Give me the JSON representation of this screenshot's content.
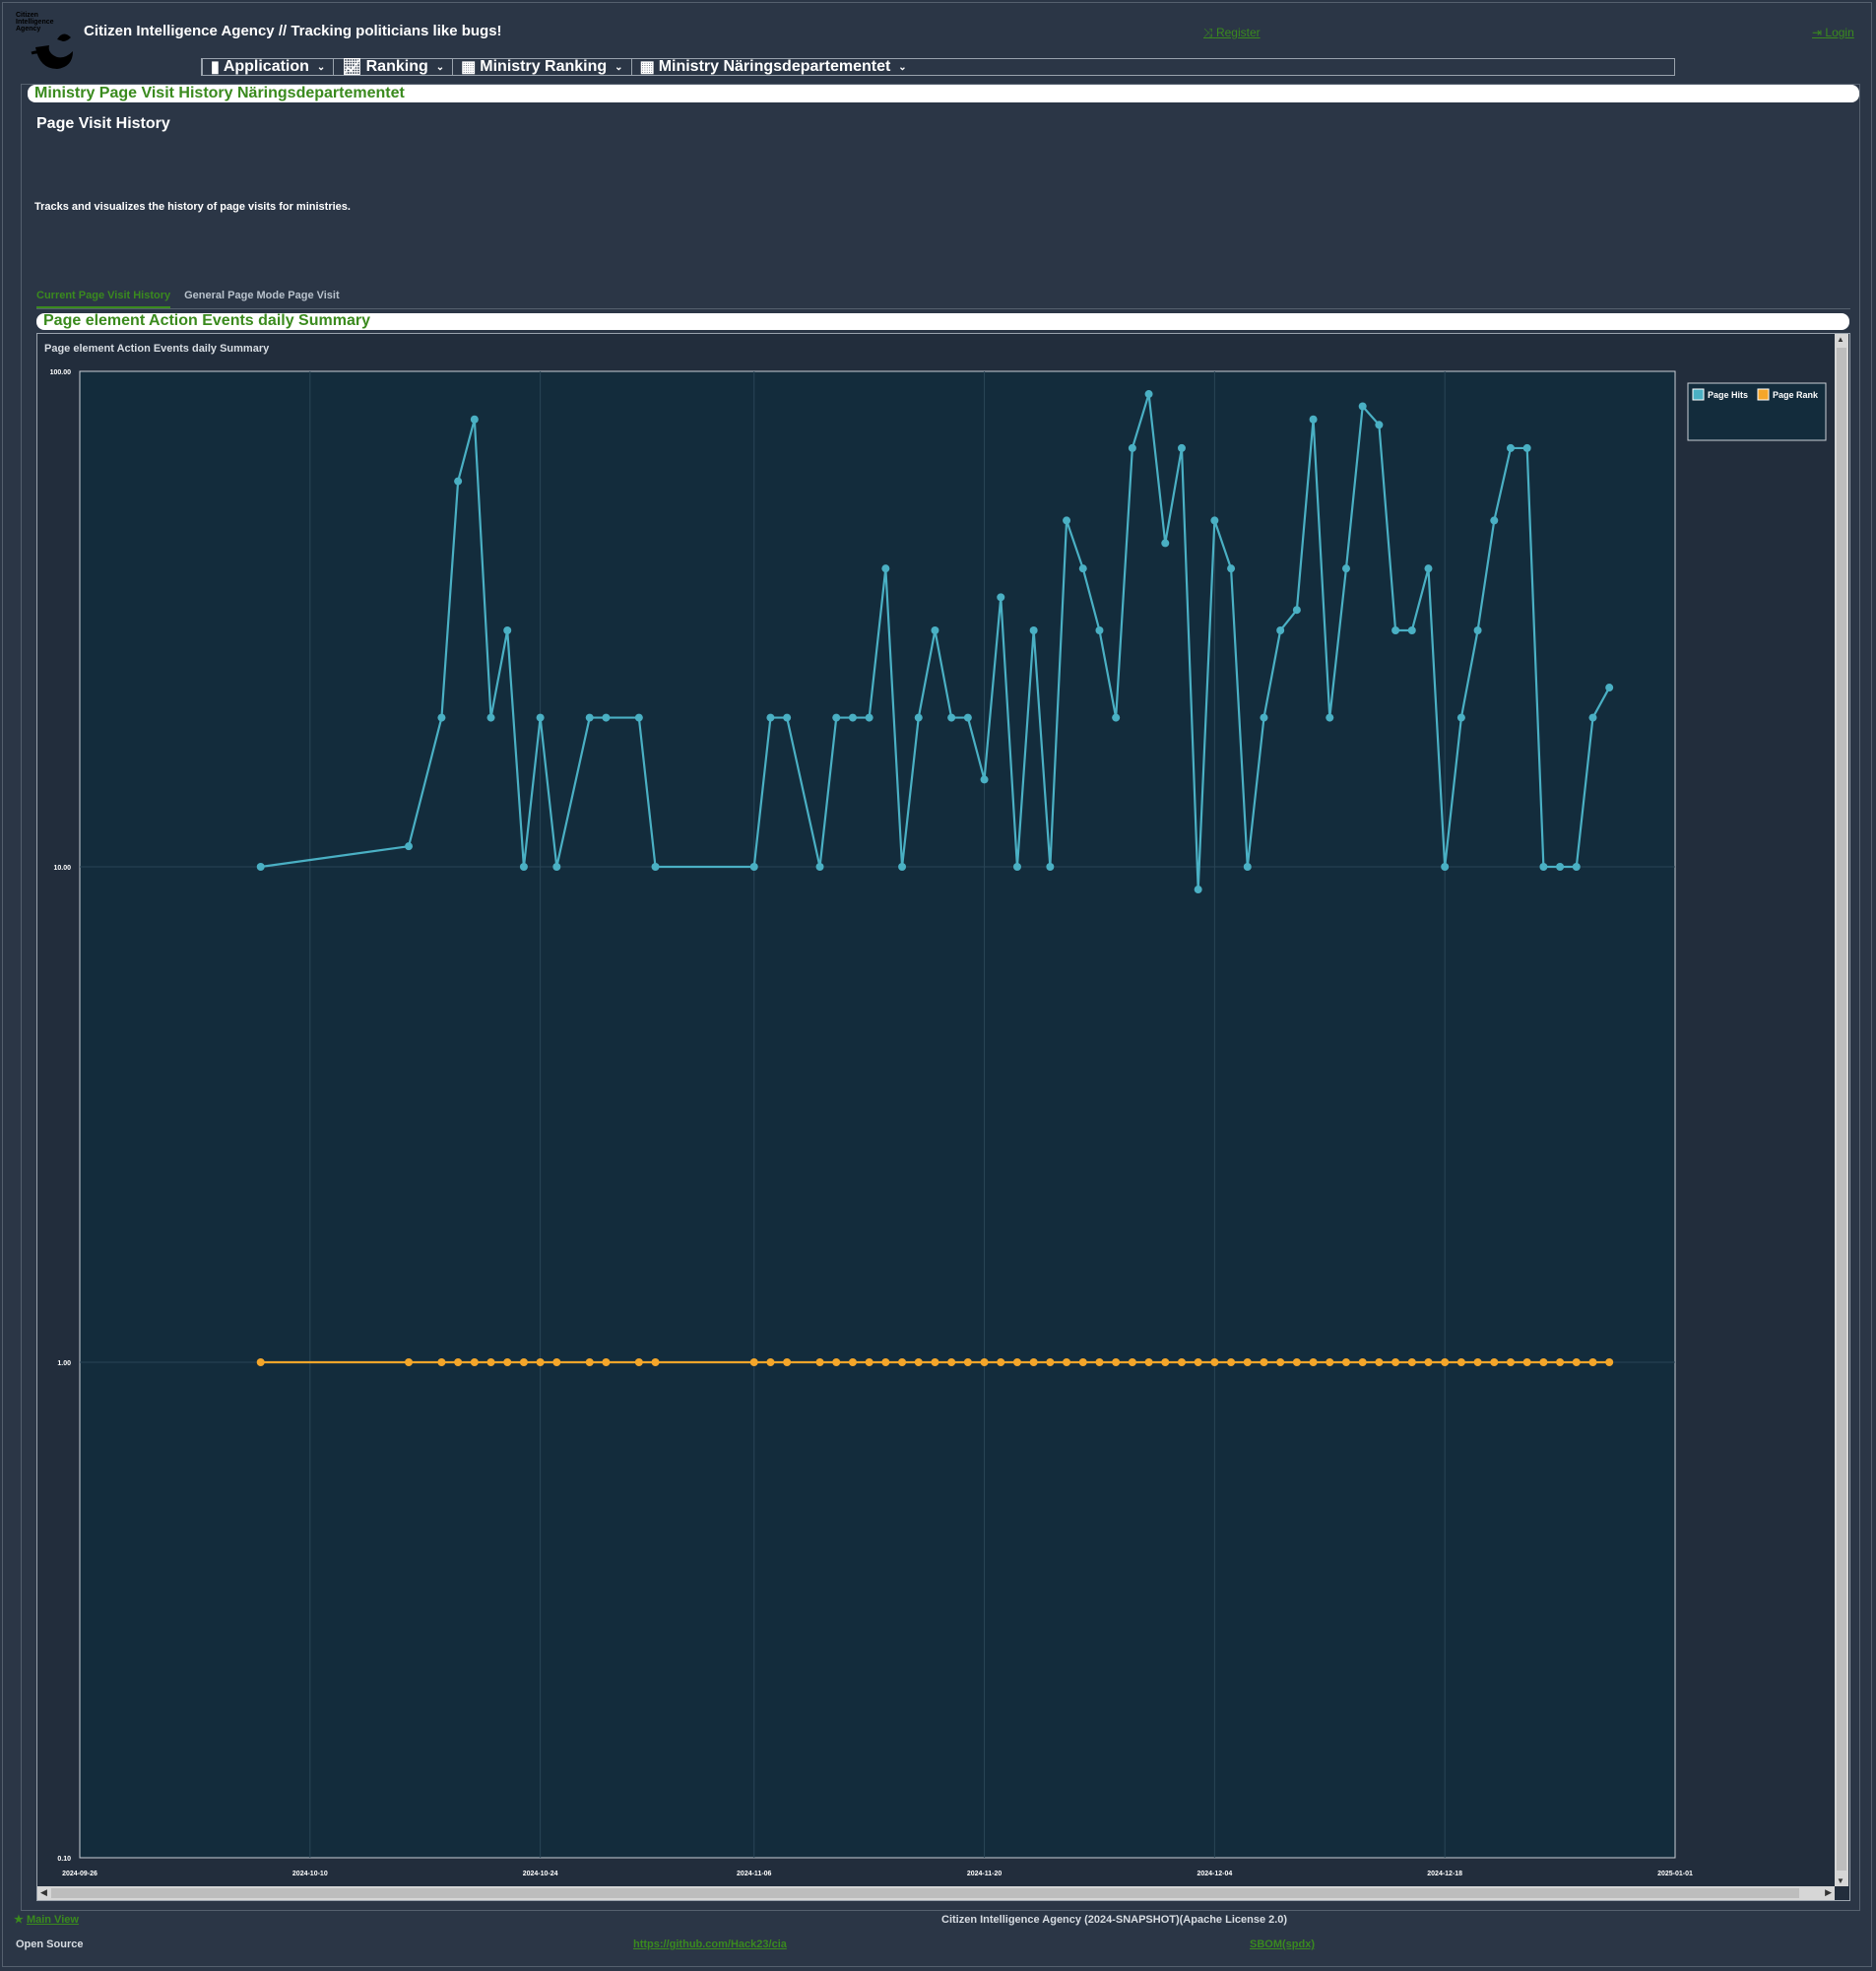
{
  "header": {
    "logo_text": "Citizen Intelligence Agency",
    "title": "Citizen Intelligence Agency  // Tracking politicians like bugs!",
    "register_label": "Register",
    "login_label": "Login"
  },
  "menu": [
    {
      "label": "Application",
      "icon": "document-icon"
    },
    {
      "label": "Ranking",
      "icon": "line-chart-icon"
    },
    {
      "label": "Ministry Ranking",
      "icon": "group-icon"
    },
    {
      "label": "Ministry Näringsdepartementet",
      "icon": "group-icon"
    }
  ],
  "page": {
    "title": "Ministry Page Visit History Näringsdepartementet",
    "section_title": "Page Visit History",
    "section_desc": "Tracks and visualizes the history of page visits for ministries.",
    "tabs": [
      {
        "label": "Current Page Visit History",
        "active": true
      },
      {
        "label": "General Page Mode Page Visit",
        "active": false
      }
    ],
    "chart_panel_title": "Page element Action Events daily Summary"
  },
  "colors": {
    "page_hits": "#4ab0c4",
    "page_rank": "#f4a62a",
    "plot_bg": "#132c3c",
    "accent_green": "#3a8a1e"
  },
  "chart_data": {
    "type": "line",
    "title": "Page element Action Events daily Summary",
    "y_scale": "log",
    "ylim": [
      0.1,
      100
    ],
    "y_ticks": [
      "100.00",
      "10.00",
      "1.00",
      "0.10"
    ],
    "x_ticks": [
      "2024-09-26",
      "2024-10-10",
      "2024-10-24",
      "2024-11-06",
      "2024-11-20",
      "2024-12-04",
      "2024-12-18",
      "2025-01-01"
    ],
    "xlim": [
      "2024-09-26",
      "2025-01-01"
    ],
    "legend": {
      "position": "top-right",
      "entries": [
        "Page Hits",
        "Page Rank"
      ]
    },
    "grid": true,
    "series": [
      {
        "name": "Page Hits",
        "points": [
          [
            "2024-10-07",
            10
          ],
          [
            "2024-10-16",
            11
          ],
          [
            "2024-10-18",
            20
          ],
          [
            "2024-10-19",
            60
          ],
          [
            "2024-10-20",
            80
          ],
          [
            "2024-10-21",
            20
          ],
          [
            "2024-10-22",
            30
          ],
          [
            "2024-10-23",
            10
          ],
          [
            "2024-10-24",
            20
          ],
          [
            "2024-10-25",
            10
          ],
          [
            "2024-10-27",
            20
          ],
          [
            "2024-10-28",
            20
          ],
          [
            "2024-10-30",
            20
          ],
          [
            "2024-10-31",
            10
          ],
          [
            "2024-11-06",
            10
          ],
          [
            "2024-11-07",
            20
          ],
          [
            "2024-11-08",
            20
          ],
          [
            "2024-11-10",
            10
          ],
          [
            "2024-11-11",
            20
          ],
          [
            "2024-11-12",
            20
          ],
          [
            "2024-11-13",
            20
          ],
          [
            "2024-11-14",
            40
          ],
          [
            "2024-11-15",
            10
          ],
          [
            "2024-11-16",
            20
          ],
          [
            "2024-11-17",
            30
          ],
          [
            "2024-11-18",
            20
          ],
          [
            "2024-11-19",
            20
          ],
          [
            "2024-11-20",
            15
          ],
          [
            "2024-11-21",
            35
          ],
          [
            "2024-11-22",
            10
          ],
          [
            "2024-11-23",
            30
          ],
          [
            "2024-11-24",
            10
          ],
          [
            "2024-11-25",
            50
          ],
          [
            "2024-11-26",
            40
          ],
          [
            "2024-11-27",
            30
          ],
          [
            "2024-11-28",
            20
          ],
          [
            "2024-11-29",
            70
          ],
          [
            "2024-11-30",
            90
          ],
          [
            "2024-12-01",
            45
          ],
          [
            "2024-12-02",
            70
          ],
          [
            "2024-12-03",
            9
          ],
          [
            "2024-12-04",
            50
          ],
          [
            "2024-12-05",
            40
          ],
          [
            "2024-12-06",
            10
          ],
          [
            "2024-12-07",
            20
          ],
          [
            "2024-12-08",
            30
          ],
          [
            "2024-12-09",
            33
          ],
          [
            "2024-12-10",
            80
          ],
          [
            "2024-12-11",
            20
          ],
          [
            "2024-12-12",
            40
          ],
          [
            "2024-12-13",
            85
          ],
          [
            "2024-12-14",
            78
          ],
          [
            "2024-12-15",
            30
          ],
          [
            "2024-12-16",
            30
          ],
          [
            "2024-12-17",
            40
          ],
          [
            "2024-12-18",
            10
          ],
          [
            "2024-12-19",
            20
          ],
          [
            "2024-12-20",
            30
          ],
          [
            "2024-12-21",
            50
          ],
          [
            "2024-12-22",
            70
          ],
          [
            "2024-12-23",
            70
          ],
          [
            "2024-12-24",
            10
          ],
          [
            "2024-12-25",
            10
          ],
          [
            "2024-12-26",
            10
          ],
          [
            "2024-12-27",
            20
          ],
          [
            "2024-12-28",
            23
          ]
        ]
      },
      {
        "name": "Page Rank",
        "points": [
          [
            "2024-10-07",
            1
          ],
          [
            "2024-10-16",
            1
          ],
          [
            "2024-10-18",
            1
          ],
          [
            "2024-10-19",
            1
          ],
          [
            "2024-10-20",
            1
          ],
          [
            "2024-10-21",
            1
          ],
          [
            "2024-10-22",
            1
          ],
          [
            "2024-10-23",
            1
          ],
          [
            "2024-10-24",
            1
          ],
          [
            "2024-10-25",
            1
          ],
          [
            "2024-10-27",
            1
          ],
          [
            "2024-10-28",
            1
          ],
          [
            "2024-10-30",
            1
          ],
          [
            "2024-10-31",
            1
          ],
          [
            "2024-11-06",
            1
          ],
          [
            "2024-11-07",
            1
          ],
          [
            "2024-11-08",
            1
          ],
          [
            "2024-11-10",
            1
          ],
          [
            "2024-11-11",
            1
          ],
          [
            "2024-11-12",
            1
          ],
          [
            "2024-11-13",
            1
          ],
          [
            "2024-11-14",
            1
          ],
          [
            "2024-11-15",
            1
          ],
          [
            "2024-11-16",
            1
          ],
          [
            "2024-11-17",
            1
          ],
          [
            "2024-11-18",
            1
          ],
          [
            "2024-11-19",
            1
          ],
          [
            "2024-11-20",
            1
          ],
          [
            "2024-11-21",
            1
          ],
          [
            "2024-11-22",
            1
          ],
          [
            "2024-11-23",
            1
          ],
          [
            "2024-11-24",
            1
          ],
          [
            "2024-11-25",
            1
          ],
          [
            "2024-11-26",
            1
          ],
          [
            "2024-11-27",
            1
          ],
          [
            "2024-11-28",
            1
          ],
          [
            "2024-11-29",
            1
          ],
          [
            "2024-11-30",
            1
          ],
          [
            "2024-12-01",
            1
          ],
          [
            "2024-12-02",
            1
          ],
          [
            "2024-12-03",
            1
          ],
          [
            "2024-12-04",
            1
          ],
          [
            "2024-12-05",
            1
          ],
          [
            "2024-12-06",
            1
          ],
          [
            "2024-12-07",
            1
          ],
          [
            "2024-12-08",
            1
          ],
          [
            "2024-12-09",
            1
          ],
          [
            "2024-12-10",
            1
          ],
          [
            "2024-12-11",
            1
          ],
          [
            "2024-12-12",
            1
          ],
          [
            "2024-12-13",
            1
          ],
          [
            "2024-12-14",
            1
          ],
          [
            "2024-12-15",
            1
          ],
          [
            "2024-12-16",
            1
          ],
          [
            "2024-12-17",
            1
          ],
          [
            "2024-12-18",
            1
          ],
          [
            "2024-12-19",
            1
          ],
          [
            "2024-12-20",
            1
          ],
          [
            "2024-12-21",
            1
          ],
          [
            "2024-12-22",
            1
          ],
          [
            "2024-12-23",
            1
          ],
          [
            "2024-12-24",
            1
          ],
          [
            "2024-12-25",
            1
          ],
          [
            "2024-12-26",
            1
          ],
          [
            "2024-12-27",
            1
          ],
          [
            "2024-12-28",
            1
          ]
        ]
      }
    ]
  },
  "footer": {
    "main_view_label": "Main View",
    "copyright": "Citizen Intelligence Agency (2024-SNAPSHOT)(Apache License 2.0)",
    "open_source_label": "Open Source",
    "github_link": "https://github.com/Hack23/cia",
    "sbom_link": "SBOM(spdx)"
  }
}
